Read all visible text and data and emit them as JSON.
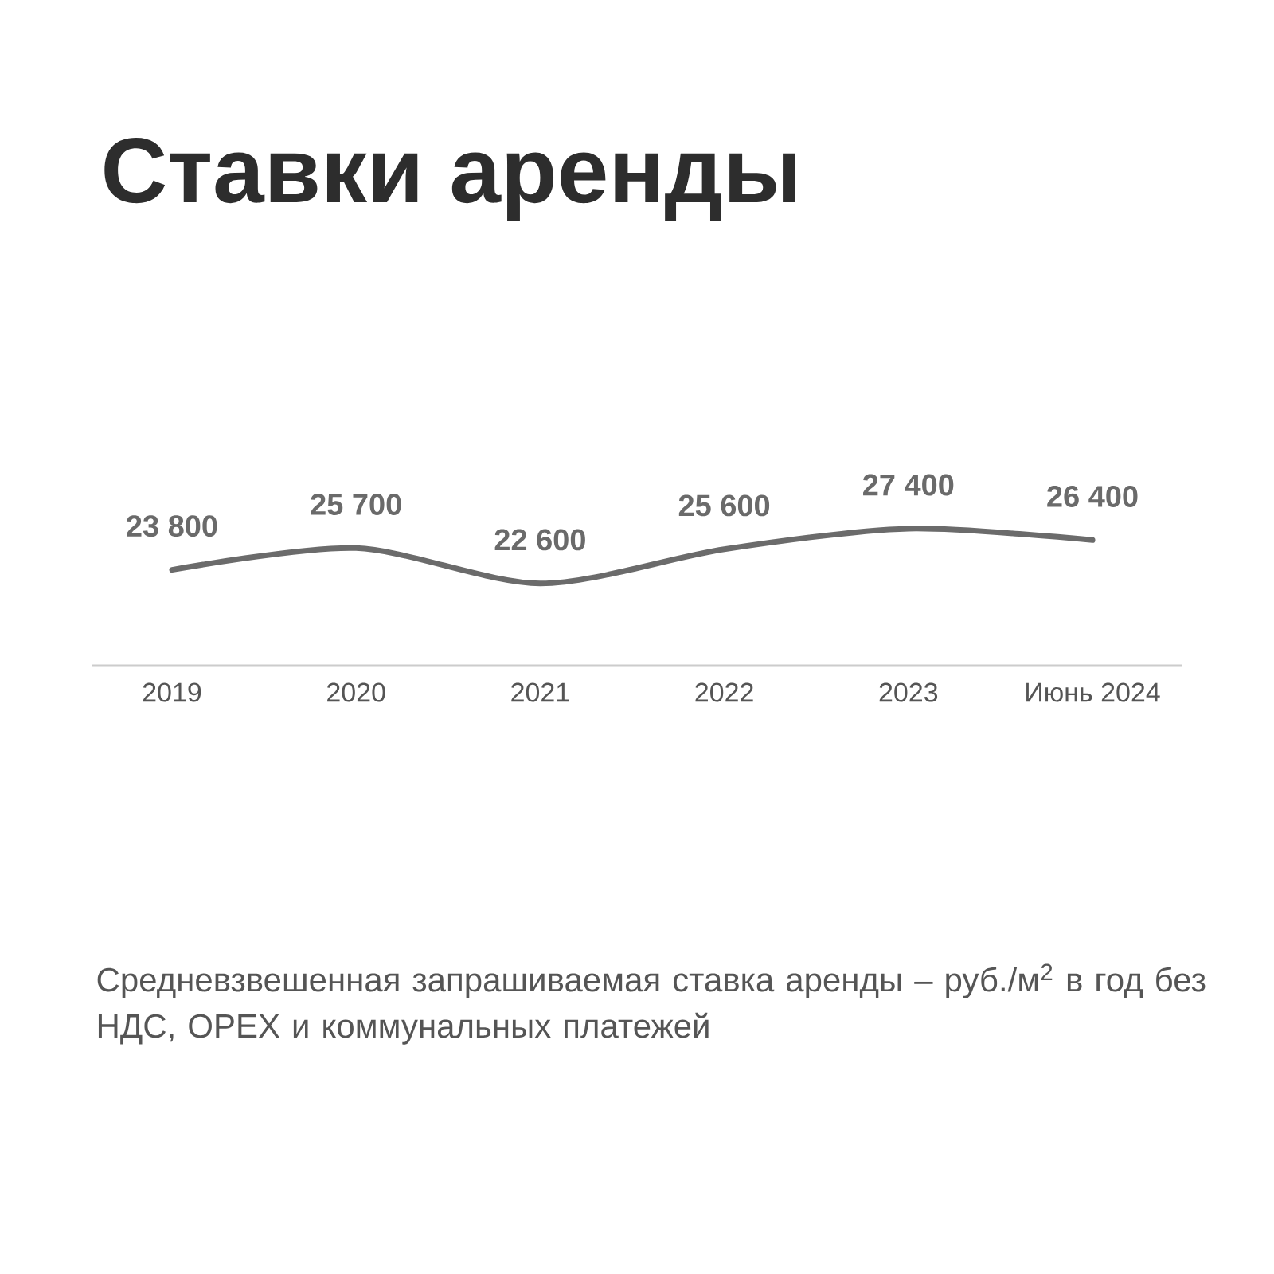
{
  "chart_data": {
    "type": "line",
    "title": "Ставки аренды",
    "categories": [
      "2019",
      "2020",
      "2021",
      "2022",
      "2023",
      "Июнь 2024"
    ],
    "values": [
      23800,
      25700,
      22600,
      25600,
      27400,
      26400
    ],
    "color": "#6b6b6b",
    "data_labels": true,
    "tick_labels": "x",
    "annotations": [
      "Средневзвешенная запрашиваемая ставка аренды – руб./м$^{2}$ в год без НДС, OPEX и коммунальных платежей"
    ]
  }
}
